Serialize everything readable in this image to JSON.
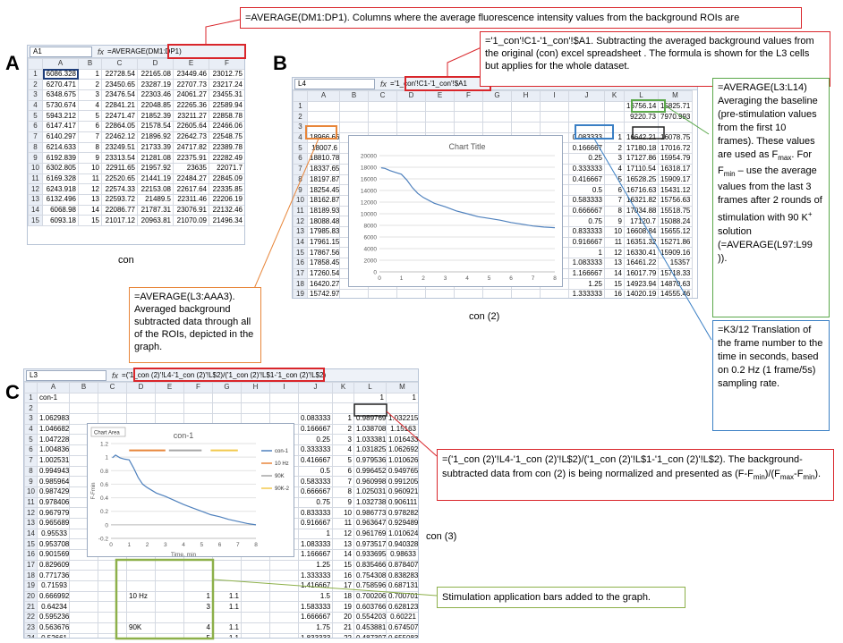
{
  "panels": {
    "a": "A",
    "b": "B",
    "c": "C"
  },
  "annotations": {
    "top": "=AVERAGE(DM1:DP1).   Columns where the   average fluorescence intensity values from the background ROIs are",
    "subtract": "='1_con'!C1-'1_con'!$A1.  Subtracting the  averaged background values from the  original (con) excel spreadsheet . The formula is shown for  the L3 cells but applies for the whole dataset.",
    "l3aaa3": "=AVERAGE(L3:AAA3). Averaged background subtracted data through all of the ROIs, depicted in the graph.",
    "fmax_main": "=AVERAGE(L3:L14) Averaging the baseline (pre-stimulation values from the first 10 frames). These values are used as F",
    "fmax_sub": "max",
    "fmin_mid": ". For F",
    "fmin_sub": "min",
    "fmin_rest": " – use the average values from the  last 3 frames after   2 rounds of stimulation with 90 K",
    "kplus": "+",
    "fmin_end": " solution (=AVERAGE(L97:L99 )).",
    "k3": "=K3/12 Translation of the frame number to the time in seconds, based on 0.2 Hz (1 frame/5s) sampling rate.",
    "norm_a": "=('1_con (2)'!L4-'1_con (2)'!L$2)/('1_con (2)'!L$1-'1_con (2)'!L$2). The background-subtracted data from con (2) is being normalized and presented as (F-F",
    "norm_b": ")/(F",
    "norm_c": "-F",
    "norm_d": ").",
    "stim": "Stimulation application bars added to the graph."
  },
  "captions": {
    "a": "con",
    "b": "con (2)",
    "c": "con (3)"
  },
  "sheetA": {
    "namebox": "A1",
    "fx": "fx",
    "formula": "=AVERAGE(DM1:DP1)",
    "columns": [
      "",
      "A",
      "B",
      "C",
      "D",
      "E",
      "F"
    ],
    "rows": [
      [
        "1",
        "6086.328",
        "1",
        "22728.54",
        "22165.08",
        "23449.46",
        "23012.75"
      ],
      [
        "2",
        "6270.471",
        "2",
        "23450.65",
        "23287.19",
        "22707.73",
        "23217.24"
      ],
      [
        "3",
        "6348.675",
        "3",
        "23476.54",
        "22303.46",
        "24061.27",
        "23455.31"
      ],
      [
        "4",
        "5730.674",
        "4",
        "22841.21",
        "22048.85",
        "22265.36",
        "22589.94"
      ],
      [
        "5",
        "5943.212",
        "5",
        "22471.47",
        "21852.39",
        "23211.27",
        "22858.78"
      ],
      [
        "6",
        "6147.417",
        "6",
        "22864.05",
        "21578.54",
        "22605.64",
        "22466.06"
      ],
      [
        "7",
        "6140.297",
        "7",
        "22462.12",
        "21896.92",
        "22642.73",
        "22548.75"
      ],
      [
        "8",
        "6214.633",
        "8",
        "23249.51",
        "21733.39",
        "24717.82",
        "22389.78"
      ],
      [
        "9",
        "6192.839",
        "9",
        "23313.54",
        "21281.08",
        "22375.91",
        "22282.49"
      ],
      [
        "10",
        "6302.805",
        "10",
        "22911.65",
        "21957.92",
        "23635",
        "22071.7"
      ],
      [
        "11",
        "6169.328",
        "11",
        "22520.65",
        "21441.19",
        "22484.27",
        "22845.09"
      ],
      [
        "12",
        "6243.918",
        "12",
        "22574.33",
        "22153.08",
        "22617.64",
        "22335.85"
      ],
      [
        "13",
        "6132.496",
        "13",
        "22593.72",
        "21489.5",
        "22311.46",
        "22206.19"
      ],
      [
        "14",
        "6068.98",
        "14",
        "22086.77",
        "21787.31",
        "23076.91",
        "22132.46"
      ],
      [
        "15",
        "6093.18",
        "15",
        "21017.12",
        "20963.81",
        "21070.09",
        "21496.34"
      ]
    ]
  },
  "sheetB": {
    "namebox": "L4",
    "fx": "fx",
    "formula": "='1_con'!C1-'1_con'!$A1",
    "columns": [
      "",
      "A",
      "B",
      "C",
      "D",
      "E",
      "F",
      "G",
      "H",
      "I",
      "J",
      "K",
      "L",
      "M"
    ],
    "left": [
      "",
      "",
      "",
      "18966.66",
      "18007.6",
      "18810.78",
      "18337.65",
      "18197.87",
      "18254.45",
      "18162.87",
      "18189.93",
      "18088.48",
      "17985.83",
      "17961.15",
      "17867.56",
      "17858.45",
      "17260.54",
      "16420.27",
      "15742.97",
      "15119.93",
      "14571.15"
    ],
    "right": [
      [
        "",
        "",
        "16756.14",
        "15825.71"
      ],
      [
        "",
        "",
        "9220.73",
        "7970.993"
      ],
      [
        "",
        "",
        "",
        ""
      ],
      [
        "0.083333",
        "1",
        "16642.21",
        "16078.75"
      ],
      [
        "0.166667",
        "2",
        "17180.18",
        "17016.72"
      ],
      [
        "0.25",
        "3",
        "17127.86",
        "15954.79"
      ],
      [
        "0.333333",
        "4",
        "17110.54",
        "16318.17"
      ],
      [
        "0.416667",
        "5",
        "16528.25",
        "15909.17"
      ],
      [
        "0.5",
        "6",
        "16716.63",
        "15431.12"
      ],
      [
        "0.583333",
        "7",
        "16321.82",
        "15756.63"
      ],
      [
        "0.666667",
        "8",
        "17034.88",
        "15518.75"
      ],
      [
        "0.75",
        "9",
        "17120.7",
        "15088.24"
      ],
      [
        "0.833333",
        "10",
        "16608.84",
        "15655.12"
      ],
      [
        "0.916667",
        "11",
        "16351.32",
        "15271.86"
      ],
      [
        "1",
        "12",
        "16330.41",
        "15909.16"
      ],
      [
        "1.083333",
        "13",
        "16461.22",
        "15357"
      ],
      [
        "1.166667",
        "14",
        "16017.79",
        "15718.33"
      ],
      [
        "1.25",
        "15",
        "14923.94",
        "14870.63"
      ],
      [
        "1.333333",
        "16",
        "14020.19",
        "14555.46"
      ],
      [
        "1.416667",
        "17",
        "14067.93",
        "13368.21"
      ],
      [
        "1.5",
        "18",
        "13417.72",
        "13474.8"
      ]
    ]
  },
  "sheetC": {
    "namebox": "L3",
    "fx": "fx",
    "formula": "=('1_con (2)'!L4-'1_con (2)'!L$2)/('1_con (2)'!L$1-'1_con (2)'!L$2)",
    "columns": [
      "",
      "A",
      "B",
      "C",
      "D",
      "E",
      "F",
      "G",
      "H",
      "I",
      "J",
      "K",
      "L",
      "M"
    ],
    "row1": {
      "a": "con-1",
      "l": "1",
      "m": "1"
    },
    "left": [
      "",
      "",
      "1.062983",
      "1.046682",
      "1.047228",
      "1.004836",
      "1.002531",
      "0.994943",
      "0.985964",
      "0.987429",
      "0.978406",
      "0.967979",
      "0.965689",
      "0.95533",
      "0.953708",
      "0.901569",
      "0.829609",
      "0.771736",
      "0.71593",
      "0.666992",
      "0.64234",
      "0.595236",
      "0.563676",
      "0.52661",
      "0.505349",
      "0.483435",
      "0.460838"
    ],
    "right": [
      [
        "",
        "",
        "1",
        "1"
      ],
      [
        "",
        "",
        "",
        ""
      ],
      [
        "0.083333",
        "1",
        "0.989769",
        "1.032215"
      ],
      [
        "0.166667",
        "2",
        "1.038708",
        "1.15163"
      ],
      [
        "0.25",
        "3",
        "1.033381",
        "1.016433"
      ],
      [
        "0.333333",
        "4",
        "1.031825",
        "1.062692"
      ],
      [
        "0.416667",
        "5",
        "0.979536",
        "1.010626"
      ],
      [
        "0.5",
        "6",
        "0.996452",
        "0.949765"
      ],
      [
        "0.583333",
        "7",
        "0.960998",
        "0.991205"
      ],
      [
        "0.666667",
        "8",
        "1.025031",
        "0.960921"
      ],
      [
        "0.75",
        "9",
        "1.032738",
        "0.906111"
      ],
      [
        "0.833333",
        "10",
        "0.986773",
        "0.978282"
      ],
      [
        "0.916667",
        "11",
        "0.963647",
        "0.929489"
      ],
      [
        "1",
        "12",
        "0.961769",
        "1.010624"
      ],
      [
        "1.083333",
        "13",
        "0.973517",
        "0.940328"
      ],
      [
        "1.166667",
        "14",
        "0.933695",
        "0.98633"
      ],
      [
        "1.25",
        "15",
        "0.835466",
        "0.878407"
      ],
      [
        "1.333333",
        "16",
        "0.754308",
        "0.838283"
      ],
      [
        "1.416667",
        "17",
        "0.758596",
        "0.687131"
      ],
      [
        "1.5",
        "18",
        "0.700206",
        "0.700701"
      ],
      [
        "1.583333",
        "19",
        "0.603766",
        "0.628123"
      ],
      [
        "1.666667",
        "20",
        "0.554203",
        "0.60221"
      ],
      [
        "1.75",
        "21",
        "0.453881",
        "0.674507"
      ],
      [
        "1.833333",
        "22",
        "0.487397",
        "0.655083"
      ],
      [
        "1.916667",
        "23",
        "0.412889",
        "0.680044"
      ],
      [
        "2",
        "24",
        "0.397898",
        "0.547727"
      ],
      [
        "2.083333",
        "25",
        "0.357538",
        "0.68033"
      ]
    ],
    "stim": [
      {
        "row": 20,
        "d": "10 Hz",
        "f": "1",
        "g": "1.1"
      },
      {
        "row": 21,
        "d": "",
        "f": "3",
        "g": "1.1"
      },
      {
        "row": 23,
        "d": "90K",
        "f": "4",
        "g": "1.1"
      },
      {
        "row": 24,
        "d": "",
        "f": "5",
        "g": "1.1"
      },
      {
        "row": 26,
        "d": "90K-2",
        "f": "6",
        "g": "1.1"
      },
      {
        "row": 27,
        "d": "",
        "f": "7",
        "g": "1.1"
      }
    ]
  },
  "chart_data": [
    {
      "type": "line",
      "title": "Chart Title",
      "xlabel": "",
      "ylabel": "",
      "xlim": [
        0,
        8
      ],
      "ylim": [
        0,
        20000
      ],
      "xticks": [
        "0",
        "1",
        "2",
        "3",
        "4",
        "5",
        "6",
        "7",
        "8"
      ],
      "yticks": [
        "0",
        "2000",
        "4000",
        "6000",
        "8000",
        "10000",
        "12000",
        "14000",
        "16000",
        "18000",
        "20000"
      ],
      "series": [
        {
          "color": "#4f81bd",
          "points": [
            [
              0.08,
              17900
            ],
            [
              0.25,
              17800
            ],
            [
              0.5,
              17400
            ],
            [
              0.75,
              17100
            ],
            [
              1,
              16800
            ],
            [
              1.25,
              15800
            ],
            [
              1.5,
              14500
            ],
            [
              1.75,
              13500
            ],
            [
              2,
              12800
            ],
            [
              2.5,
              11800
            ],
            [
              3,
              11200
            ],
            [
              3.5,
              10500
            ],
            [
              4,
              10000
            ],
            [
              4.5,
              9500
            ],
            [
              5,
              9200
            ],
            [
              5.5,
              8900
            ],
            [
              6,
              8500
            ],
            [
              6.5,
              8200
            ],
            [
              7,
              7900
            ],
            [
              7.5,
              7700
            ],
            [
              8,
              7600
            ]
          ]
        }
      ]
    },
    {
      "type": "line",
      "title": "con-1",
      "tag": "Chart Area",
      "xlabel": "Time, min",
      "ylabel": "F-Fmin",
      "xlim": [
        0,
        8
      ],
      "ylim": [
        -0.2,
        1.2
      ],
      "xticks": [
        "0",
        "1",
        "2",
        "3",
        "4",
        "5",
        "6",
        "7",
        "8"
      ],
      "yticks": [
        "-0.2",
        "0",
        "0.2",
        "0.4",
        "0.6",
        "0.8",
        "1",
        "1.2"
      ],
      "legend": [
        "con-1",
        "10 Hz",
        "90K",
        "90K-2"
      ],
      "legend_colors": [
        "#4f81bd",
        "#e8863a",
        "#a6a6a6",
        "#f2c94c"
      ],
      "series": [
        {
          "name": "con-1",
          "color": "#4f81bd",
          "points": [
            [
              0.08,
              0.99
            ],
            [
              0.25,
              1.03
            ],
            [
              0.5,
              0.99
            ],
            [
              0.75,
              0.97
            ],
            [
              1,
              0.96
            ],
            [
              1.25,
              0.84
            ],
            [
              1.5,
              0.7
            ],
            [
              1.75,
              0.6
            ],
            [
              2,
              0.55
            ],
            [
              2.5,
              0.47
            ],
            [
              3,
              0.42
            ],
            [
              3.5,
              0.36
            ],
            [
              4,
              0.3
            ],
            [
              4.5,
              0.25
            ],
            [
              5,
              0.2
            ],
            [
              5.5,
              0.15
            ],
            [
              6,
              0.12
            ],
            [
              6.5,
              0.08
            ],
            [
              7,
              0.05
            ],
            [
              7.5,
              0.02
            ],
            [
              8,
              0
            ]
          ]
        },
        {
          "name": "10 Hz",
          "color": "#e8863a",
          "points": [
            [
              1.0,
              1.1
            ],
            [
              3.0,
              1.1
            ]
          ]
        },
        {
          "name": "90K",
          "color": "#a6a6a6",
          "points": [
            [
              3.2,
              1.1
            ],
            [
              5.0,
              1.1
            ]
          ]
        },
        {
          "name": "90K-2",
          "color": "#f2c94c",
          "points": [
            [
              5.5,
              1.1
            ],
            [
              7.0,
              1.1
            ]
          ]
        }
      ]
    }
  ]
}
